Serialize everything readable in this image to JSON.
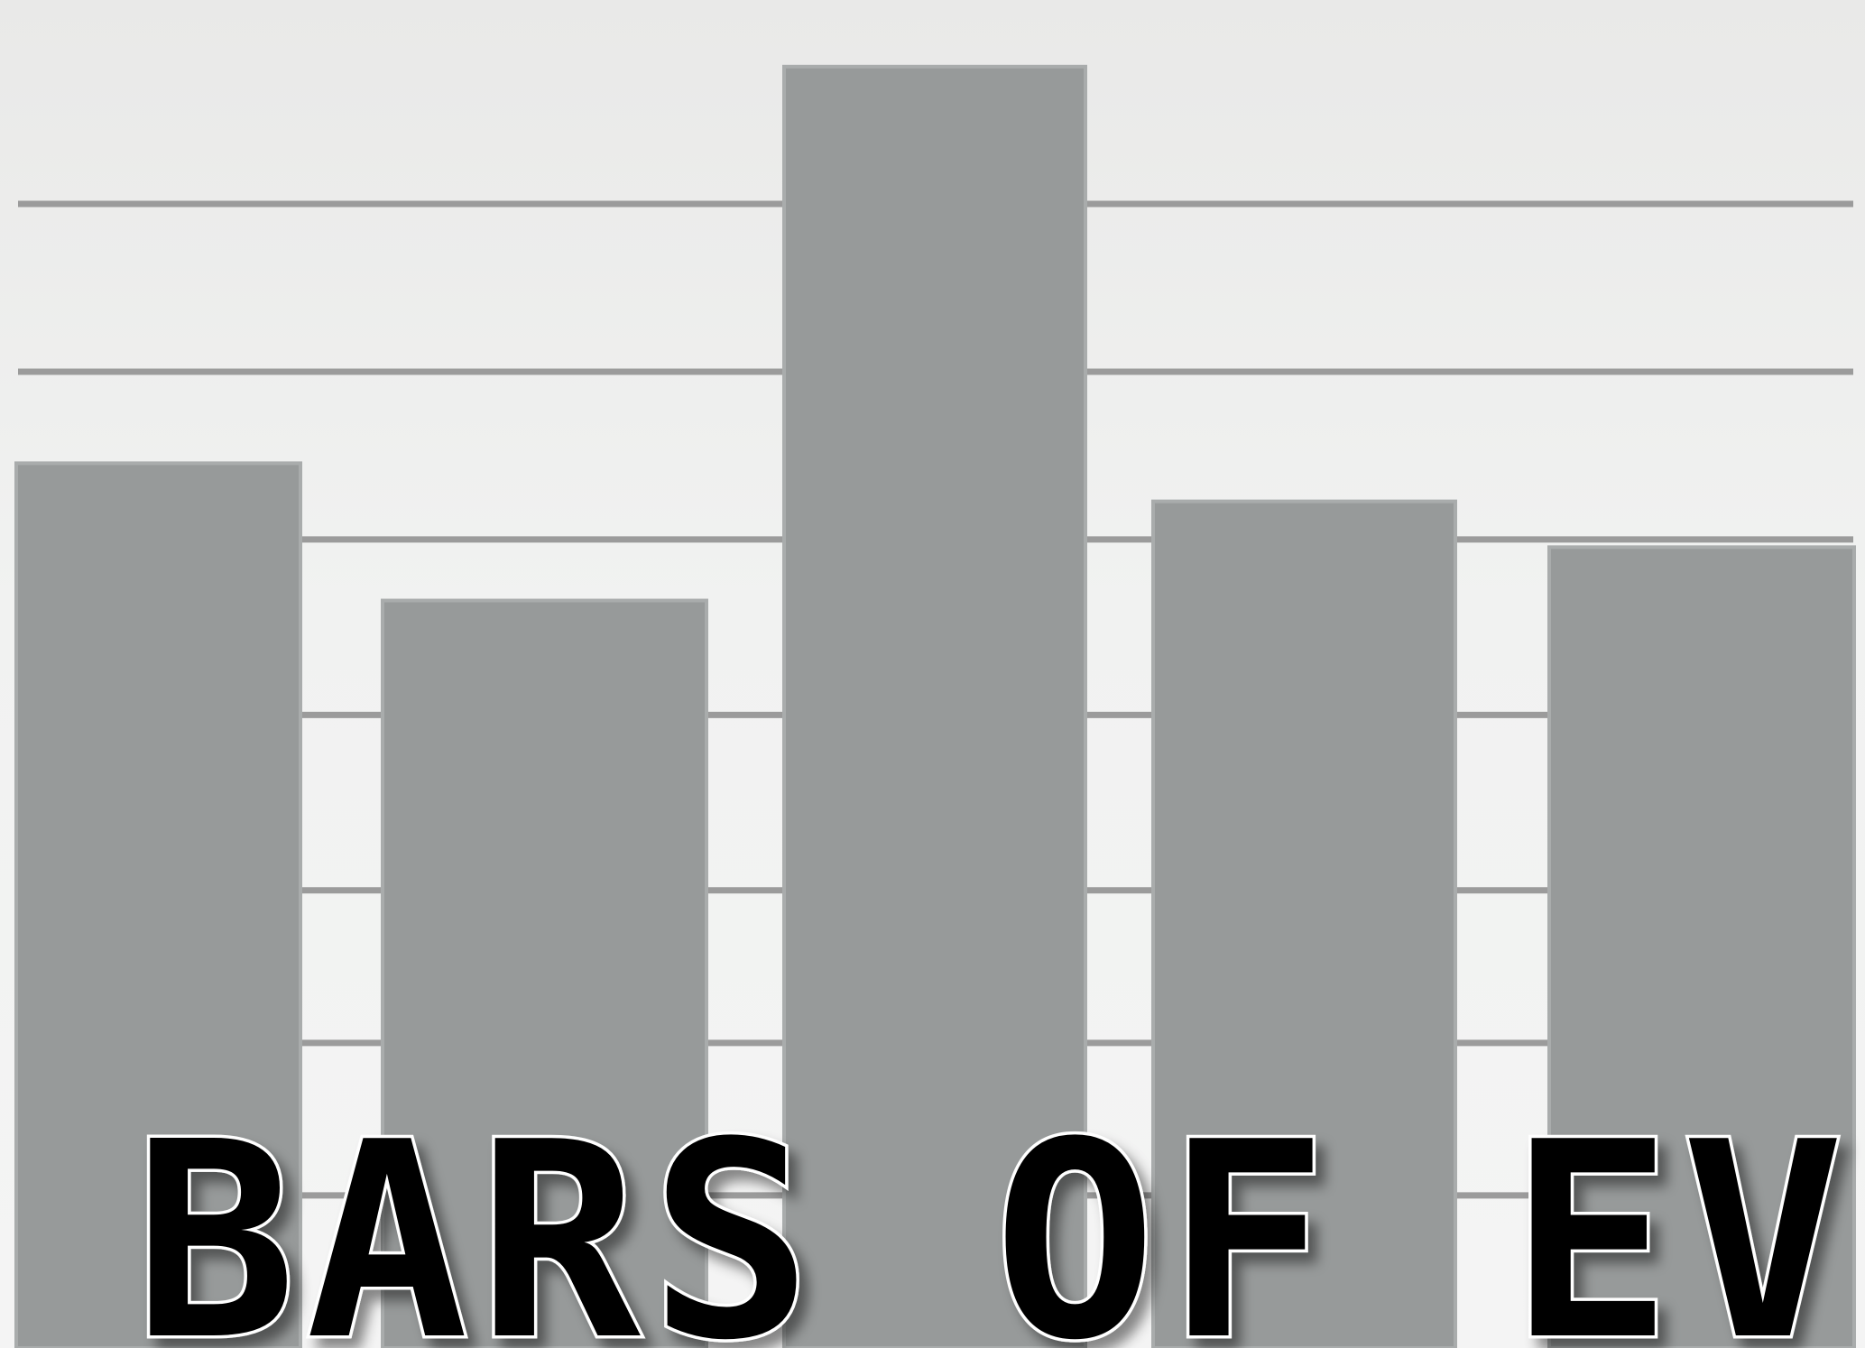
{
  "chart_data": {
    "type": "bar",
    "categories": [
      "",
      "",
      "",
      "",
      ""
    ],
    "values": [
      58,
      49,
      84,
      55.5,
      52.5
    ],
    "ylim": [
      0,
      86
    ],
    "grid": true,
    "gridlines": [
      10,
      20,
      30,
      41.5,
      53,
      64,
      75
    ],
    "title": "BARS OF EV",
    "colors": {
      "bar": "#979a9a",
      "bar_edge": "#a9acac",
      "grid": "#9b9b9b",
      "title_fill": "#050505",
      "title_outline": "#ffffff"
    }
  }
}
